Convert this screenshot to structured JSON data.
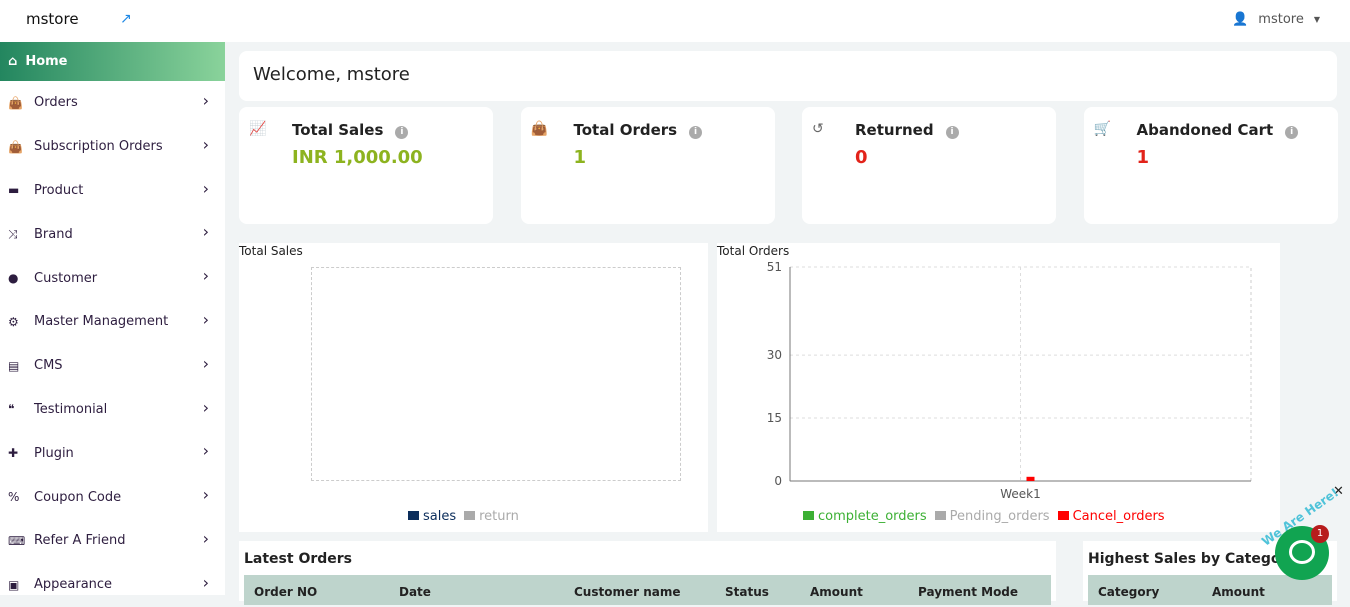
{
  "topbar": {
    "brand": "mstore",
    "user": "mstore"
  },
  "sidebar": {
    "home": "Home",
    "items": [
      {
        "label": "Orders",
        "icon": "shopping-bag-icon"
      },
      {
        "label": "Subscription Orders",
        "icon": "shopping-bag-icon"
      },
      {
        "label": "Product",
        "icon": "archive-icon"
      },
      {
        "label": "Brand",
        "icon": "shuffle-icon"
      },
      {
        "label": "Customer",
        "icon": "user-icon"
      },
      {
        "label": "Master Management",
        "icon": "user-cog-icon"
      },
      {
        "label": "CMS",
        "icon": "file-icon"
      },
      {
        "label": "Testimonial",
        "icon": "quote-icon"
      },
      {
        "label": "Plugin",
        "icon": "puzzle-icon"
      },
      {
        "label": "Coupon Code",
        "icon": "percent-icon"
      },
      {
        "label": "Refer A Friend",
        "icon": "keyboard-icon"
      },
      {
        "label": "Appearance",
        "icon": "image-icon"
      }
    ]
  },
  "welcome": "Welcome, mstore",
  "stats": [
    {
      "title": "Total Sales",
      "value": "INR 1,000.00",
      "color": "#8db31f",
      "icon": "chart-line-icon"
    },
    {
      "title": "Total Orders",
      "value": "1",
      "color": "#8db31f",
      "icon": "shopping-bag-icon"
    },
    {
      "title": "Returned",
      "value": "0",
      "color": "#e2231a",
      "icon": "undo-icon"
    },
    {
      "title": "Abandoned Cart",
      "value": "1",
      "color": "#e2231a",
      "icon": "cart-icon"
    }
  ],
  "chart_data": [
    {
      "type": "line",
      "title": "Total Sales",
      "series": [
        {
          "name": "sales",
          "color": "#0b2d5b",
          "values": []
        },
        {
          "name": "return",
          "color": "#aaaaaa",
          "values": []
        }
      ],
      "grid": true,
      "legend": "bottom"
    },
    {
      "type": "bar",
      "title": "Total Orders",
      "categories": [
        "Week1"
      ],
      "yticks": [
        0,
        15,
        30,
        51
      ],
      "ylim": [
        0,
        51
      ],
      "grid": true,
      "legend": "bottom",
      "series": [
        {
          "name": "complete_orders",
          "color": "#3cb034",
          "values": [
            0
          ]
        },
        {
          "name": "Pending_orders",
          "color": "#aaaaaa",
          "values": [
            0
          ]
        },
        {
          "name": "Cancel_orders",
          "color": "#ff0000",
          "values": [
            1
          ]
        }
      ]
    }
  ],
  "latest_orders": {
    "title": "Latest Orders",
    "columns": [
      "Order NO",
      "Date",
      "Customer name",
      "Status",
      "Amount",
      "Payment Mode"
    ]
  },
  "category_sales": {
    "title": "Highest Sales by Category",
    "columns": [
      "Category",
      "Amount"
    ]
  },
  "chat": {
    "badge": "1",
    "tagline": "We Are Here!"
  }
}
